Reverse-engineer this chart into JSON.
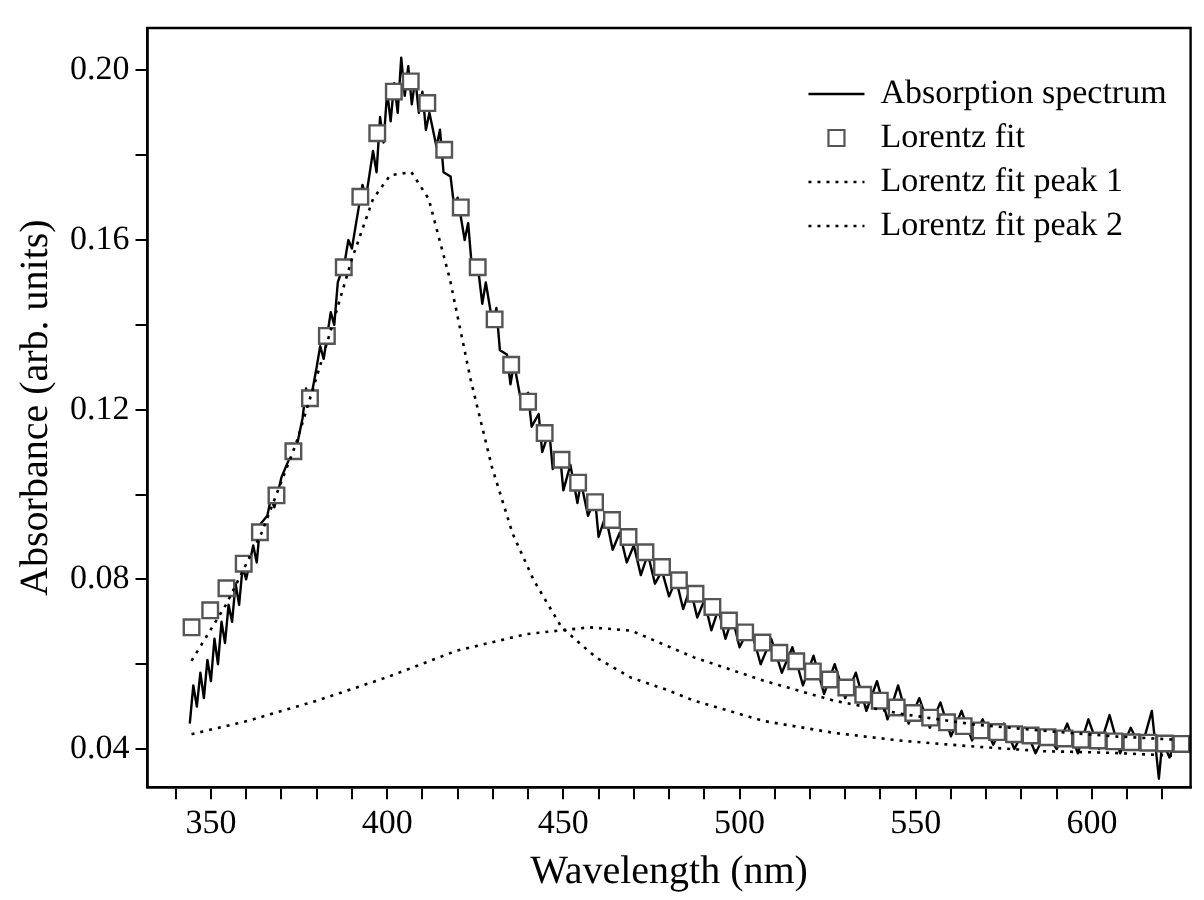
{
  "chart_data": {
    "type": "line",
    "xlabel": "Wavelength (nm)",
    "ylabel": "Absorbance (arb. units)",
    "xlim": [
      332,
      628
    ],
    "ylim": [
      0.031,
      0.21
    ],
    "xticks": [
      {
        "value": 340,
        "label": null
      },
      350,
      {
        "value": 360,
        "label": null
      },
      {
        "value": 370,
        "label": null
      },
      {
        "value": 380,
        "label": null
      },
      {
        "value": 390,
        "label": null
      },
      400,
      {
        "value": 410,
        "label": null
      },
      {
        "value": 420,
        "label": null
      },
      {
        "value": 430,
        "label": null
      },
      {
        "value": 440,
        "label": null
      },
      450,
      {
        "value": 460,
        "label": null
      },
      {
        "value": 470,
        "label": null
      },
      {
        "value": 480,
        "label": null
      },
      {
        "value": 490,
        "label": null
      },
      500,
      {
        "value": 510,
        "label": null
      },
      {
        "value": 520,
        "label": null
      },
      {
        "value": 530,
        "label": null
      },
      {
        "value": 540,
        "label": null
      },
      550,
      {
        "value": 560,
        "label": null
      },
      {
        "value": 570,
        "label": null
      },
      {
        "value": 580,
        "label": null
      },
      {
        "value": 590,
        "label": null
      },
      600,
      {
        "value": 610,
        "label": null
      },
      {
        "value": 620,
        "label": null
      }
    ],
    "yticks": [
      {
        "value": 0.04,
        "label": "0.04"
      },
      {
        "value": 0.06,
        "label": null
      },
      {
        "value": 0.08,
        "label": "0.08"
      },
      {
        "value": 0.1,
        "label": null
      },
      {
        "value": 0.12,
        "label": "0.12"
      },
      {
        "value": 0.14,
        "label": null
      },
      {
        "value": 0.16,
        "label": "0.16"
      },
      {
        "value": 0.18,
        "label": null
      },
      {
        "value": 0.2,
        "label": "0.20"
      }
    ],
    "grid": false,
    "legend": "top right",
    "series": [
      {
        "name": "Absorption spectrum",
        "color": "#000000",
        "marker": "none",
        "line_style": "solid",
        "x": [
          344,
          345,
          346,
          347,
          348,
          349,
          350,
          351,
          352,
          353,
          354,
          355,
          356,
          357,
          358,
          359,
          360,
          362,
          363,
          364,
          366,
          367,
          368,
          370,
          372,
          373,
          374,
          376,
          377,
          378,
          380,
          381,
          382,
          384,
          385,
          386,
          388,
          389,
          390,
          392,
          393,
          394,
          396,
          397,
          398,
          399,
          400,
          401,
          402,
          403,
          404,
          405,
          406,
          407,
          408,
          409,
          410,
          411,
          412,
          414,
          415,
          416,
          418,
          419,
          420,
          422,
          423,
          424,
          426,
          427,
          428,
          430,
          431,
          432,
          434,
          435,
          436,
          438,
          440,
          441,
          443,
          444,
          446,
          447,
          449,
          450,
          452,
          454,
          455,
          457,
          459,
          460,
          462,
          464,
          466,
          468,
          470,
          472,
          474,
          476,
          478,
          480,
          482,
          484,
          486,
          488,
          490,
          492,
          494,
          496,
          498,
          500,
          503,
          506,
          509,
          512,
          515,
          518,
          521,
          524,
          527,
          530,
          533,
          536,
          539,
          542,
          545,
          548,
          551,
          554,
          557,
          560,
          563,
          566,
          569,
          572,
          575,
          578,
          581,
          584,
          587,
          590,
          593,
          596,
          599,
          602,
          605,
          608,
          611,
          614,
          617,
          619,
          620,
          622,
          624,
          626
        ],
        "values": [
          0.046,
          0.055,
          0.05,
          0.058,
          0.052,
          0.061,
          0.056,
          0.066,
          0.06,
          0.07,
          0.065,
          0.074,
          0.07,
          0.079,
          0.074,
          0.083,
          0.08,
          0.088,
          0.084,
          0.093,
          0.095,
          0.099,
          0.097,
          0.104,
          0.108,
          0.112,
          0.11,
          0.118,
          0.125,
          0.121,
          0.13,
          0.135,
          0.132,
          0.143,
          0.14,
          0.15,
          0.155,
          0.16,
          0.158,
          0.168,
          0.173,
          0.17,
          0.181,
          0.176,
          0.189,
          0.183,
          0.195,
          0.188,
          0.197,
          0.19,
          0.203,
          0.194,
          0.201,
          0.192,
          0.198,
          0.19,
          0.195,
          0.186,
          0.19,
          0.182,
          0.186,
          0.176,
          0.175,
          0.168,
          0.17,
          0.16,
          0.164,
          0.154,
          0.152,
          0.145,
          0.15,
          0.14,
          0.144,
          0.134,
          0.133,
          0.126,
          0.131,
          0.122,
          0.124,
          0.116,
          0.119,
          0.11,
          0.115,
          0.106,
          0.11,
          0.101,
          0.107,
          0.098,
          0.103,
          0.095,
          0.099,
          0.09,
          0.095,
          0.087,
          0.091,
          0.084,
          0.088,
          0.081,
          0.086,
          0.079,
          0.082,
          0.076,
          0.08,
          0.073,
          0.078,
          0.071,
          0.075,
          0.068,
          0.073,
          0.066,
          0.071,
          0.064,
          0.069,
          0.06,
          0.066,
          0.058,
          0.064,
          0.055,
          0.062,
          0.053,
          0.06,
          0.052,
          0.058,
          0.049,
          0.056,
          0.047,
          0.055,
          0.046,
          0.052,
          0.045,
          0.051,
          0.043,
          0.049,
          0.042,
          0.047,
          0.041,
          0.046,
          0.04,
          0.045,
          0.039,
          0.044,
          0.04,
          0.046,
          0.039,
          0.047,
          0.04,
          0.048,
          0.039,
          0.045,
          0.04,
          0.049,
          0.033,
          0.042,
          0.038,
          0.043,
          0.04
        ]
      },
      {
        "name": "Lorentz fit",
        "type": "scatter",
        "color": "#555555",
        "marker": "square",
        "x": [
          344.5,
          349.8,
          354.4,
          359.3,
          363.9,
          368.6,
          373.4,
          378.1,
          382.9,
          387.7,
          392.4,
          397.2,
          401.9,
          406.7,
          411.4,
          416.2,
          420.9,
          425.7,
          430.5,
          435.2,
          440,
          444.7,
          449.5,
          454.2,
          459,
          463.8,
          468.5,
          473.3,
          478,
          482.8,
          487.5,
          492.3,
          497,
          501.6,
          506.5,
          511.3,
          516.1,
          520.8,
          525.6,
          530.3,
          535.1,
          539.8,
          544.6,
          549.3,
          554.1,
          558.9,
          563.6,
          568.4,
          573.1,
          577.9,
          582.6,
          587.4,
          592.2,
          596.9,
          601.7,
          606.4,
          611.2,
          616,
          620.7,
          625.4
        ],
        "values": [
          0.0687,
          0.0727,
          0.0779,
          0.0837,
          0.0911,
          0.0998,
          0.1102,
          0.1227,
          0.1374,
          0.1536,
          0.1702,
          0.1852,
          0.195,
          0.1974,
          0.1923,
          0.1813,
          0.1677,
          0.1536,
          0.1413,
          0.1306,
          0.1219,
          0.1145,
          0.1082,
          0.1028,
          0.0982,
          0.094,
          0.09,
          0.0864,
          0.0829,
          0.0798,
          0.0766,
          0.0735,
          0.0703,
          0.0675,
          0.0651,
          0.0627,
          0.0607,
          0.0583,
          0.0564,
          0.0545,
          0.0528,
          0.0514,
          0.0498,
          0.0485,
          0.0474,
          0.0463,
          0.0454,
          0.0444,
          0.044,
          0.0435,
          0.0432,
          0.0428,
          0.0425,
          0.0422,
          0.042,
          0.0418,
          0.0416,
          0.0415,
          0.0413,
          0.0412
        ]
      },
      {
        "name": "Lorentz fit peak 1",
        "color": "#000000",
        "marker": "none",
        "line_style": "dotted",
        "x": [
          344.5,
          354.4,
          364.3,
          374.2,
          382.1,
          390,
          396,
          400.9,
          406.9,
          411.8,
          417.8,
          423.7,
          429.7,
          435.6,
          441.6,
          449.5,
          459.4,
          469.3,
          479.2,
          487.1,
          506.9,
          526.8,
          546.6,
          566.4,
          586.2,
          606,
          623.9
        ],
        "values": [
          0.0608,
          0.0742,
          0.0908,
          0.1121,
          0.1334,
          0.1555,
          0.1697,
          0.1753,
          0.176,
          0.1697,
          0.1508,
          0.1271,
          0.1066,
          0.0908,
          0.0798,
          0.0687,
          0.0615,
          0.0568,
          0.054,
          0.0514,
          0.0466,
          0.0438,
          0.0419,
          0.0406,
          0.0395,
          0.0391,
          0.0384
        ]
      },
      {
        "name": "Lorentz fit peak 2",
        "color": "#000000",
        "marker": "none",
        "line_style": "dotted",
        "x": [
          344.5,
          360.3,
          380.1,
          399.9,
          419.8,
          439.6,
          457.4,
          469.3,
          487.1,
          506.9,
          526.8,
          546.6,
          566.4,
          586.2,
          606,
          623.9
        ],
        "values": [
          0.0435,
          0.0466,
          0.0514,
          0.0569,
          0.0632,
          0.0671,
          0.0687,
          0.0679,
          0.0616,
          0.0561,
          0.0514,
          0.0482,
          0.0458,
          0.0443,
          0.043,
          0.0422
        ]
      }
    ]
  }
}
